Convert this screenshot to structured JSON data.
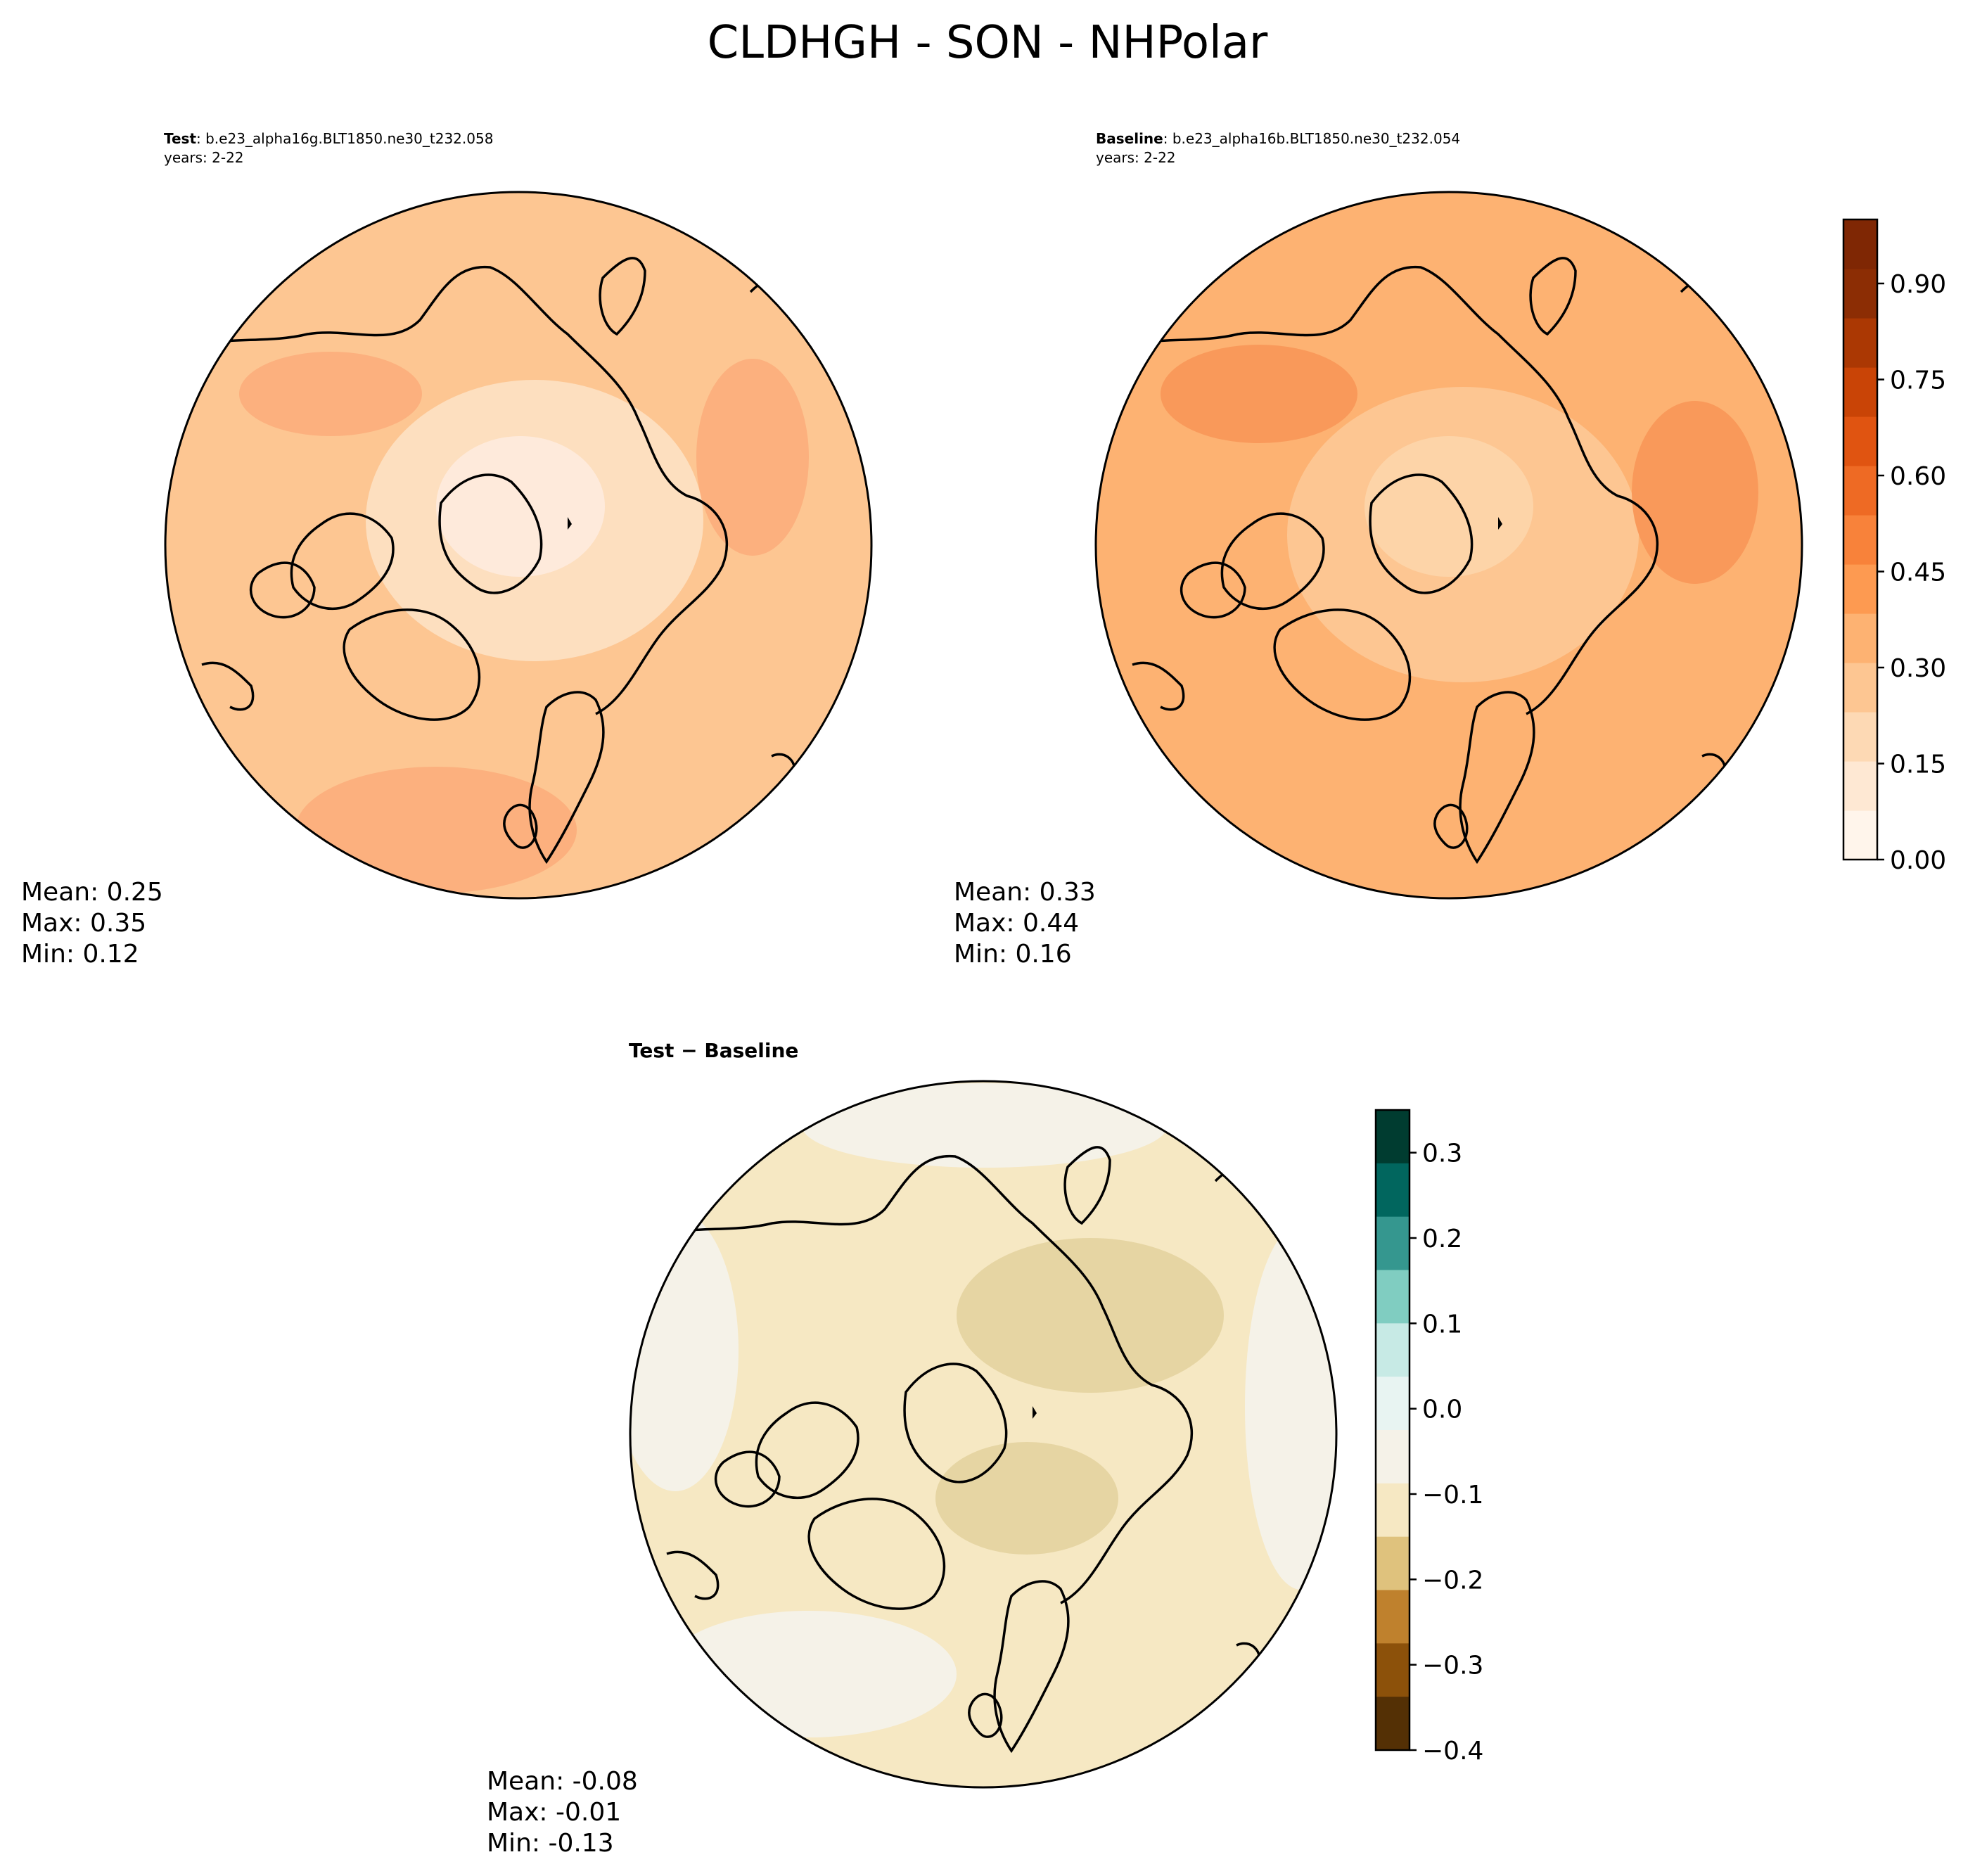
{
  "figure": {
    "title": "CLDHGH - SON - NHPolar"
  },
  "panels": {
    "test": {
      "label": "Test",
      "case": ": b.e23_alpha16g.BLT1850.ne30_t232.058",
      "years": "years: 2-22",
      "stats": {
        "mean": "Mean:  0.25",
        "max": "Max:  0.35",
        "min": "Min:  0.12"
      },
      "mean_value": 0.25
    },
    "baseline": {
      "label": "Baseline",
      "case": ": b.e23_alpha16b.BLT1850.ne30_t232.054",
      "years": "years: 2-22",
      "stats": {
        "mean": "Mean:  0.33",
        "max": "Max:  0.44",
        "min": "Min:  0.16"
      },
      "mean_value": 0.33
    },
    "difference": {
      "label": "Test − Baseline",
      "stats": {
        "mean": "Mean: -0.08",
        "max": "Max: -0.01",
        "min": "Min: -0.13"
      },
      "mean_value": -0.08
    }
  },
  "colorbars": {
    "main": {
      "ticks": [
        "0.00",
        "0.15",
        "0.30",
        "0.45",
        "0.60",
        "0.75",
        "0.90"
      ],
      "tick_values": [
        0.0,
        0.15,
        0.3,
        0.45,
        0.6,
        0.75,
        0.9
      ],
      "range": [
        0.0,
        1.0
      ],
      "colors": [
        "#fff5eb",
        "#fee8d3",
        "#fdd9b4",
        "#fdc692",
        "#fdb272",
        "#fd9a51",
        "#f8823a",
        "#ee6a24",
        "#e05411",
        "#c94406",
        "#ab3803",
        "#8c2d04",
        "#7f2704"
      ]
    },
    "diff": {
      "ticks": [
        "0.3",
        "0.2",
        "0.1",
        "0.0",
        "−0.1",
        "−0.2",
        "−0.3",
        "−0.4"
      ],
      "tick_values": [
        0.3,
        0.2,
        0.1,
        0.0,
        -0.1,
        -0.2,
        -0.3,
        -0.4
      ],
      "range": [
        -0.4,
        0.35
      ],
      "colors": [
        "#003c30",
        "#01665e",
        "#35978f",
        "#80cdc1",
        "#c7eae5",
        "#e8f4f2",
        "#f5f2e8",
        "#f6e8c3",
        "#dfc27d",
        "#bf812d",
        "#8c510a",
        "#543005"
      ]
    }
  },
  "map_colors": {
    "test": {
      "base": "#fdc692",
      "light": "#fddfbf",
      "lighter": "#feeadb",
      "dark": "#fcb07e"
    },
    "baseline": {
      "base": "#fdb272",
      "light": "#fdc692",
      "lighter": "#fdd4a8",
      "dark": "#f9995a"
    },
    "difference": {
      "base": "#f6e8c3",
      "light": "#f5f2e8",
      "dark": "#e6d5a3"
    }
  }
}
